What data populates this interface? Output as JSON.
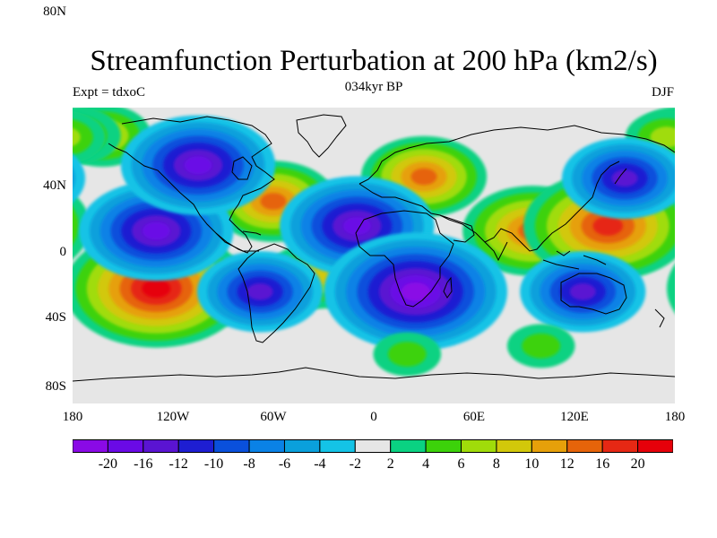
{
  "title": "Streamfunction Perturbation at 200 hPa (km2/s)",
  "left_subtitle": "Expt = tdxoC",
  "center_subtitle": "034kyr BP",
  "right_subtitle": "DJF",
  "lat_labels": [
    "80N",
    "40N",
    "0",
    "40S",
    "80S"
  ],
  "lon_labels": [
    "180",
    "120W",
    "60W",
    "0",
    "60E",
    "120E",
    "180"
  ],
  "colorbar": {
    "colors": [
      "#8a0ae6",
      "#6a0ae6",
      "#5a14d2",
      "#1e1ed2",
      "#0a50dc",
      "#0a82e6",
      "#0aa0dc",
      "#14c3e6",
      "#e6e6e6",
      "#0ad282",
      "#3cd20a",
      "#a0dc0a",
      "#d2c80a",
      "#e6a00a",
      "#e6640a",
      "#e62814",
      "#e6000a"
    ],
    "labels": [
      "-20",
      "-16",
      "-12",
      "-10",
      "-8",
      "-6",
      "-4",
      "-2",
      "2",
      "4",
      "6",
      "8",
      "10",
      "12",
      "16",
      "20"
    ]
  },
  "chart_data": {
    "type": "heatmap",
    "title": "Streamfunction Perturbation at 200 hPa (km2/s)",
    "subtitle_left": "Expt = tdxoC",
    "subtitle_center": "034kyr BP",
    "subtitle_right": "DJF",
    "x_range": [
      -180,
      180
    ],
    "y_range": [
      -90,
      90
    ],
    "contour_levels": [
      -20,
      -16,
      -12,
      -10,
      -8,
      -6,
      -4,
      -2,
      2,
      4,
      6,
      8,
      10,
      12,
      16,
      20
    ],
    "features": [
      {
        "lon": -130,
        "lat": -20,
        "value": 20
      },
      {
        "lon": 95,
        "lat": 15,
        "value": 14
      },
      {
        "lon": 140,
        "lat": 18,
        "value": 18
      },
      {
        "lon": 30,
        "lat": 48,
        "value": 12
      },
      {
        "lon": -162,
        "lat": 73,
        "value": 8
      },
      {
        "lon": -178,
        "lat": 73,
        "value": 7
      },
      {
        "lon": 175,
        "lat": 72,
        "value": 6
      },
      {
        "lon": -60,
        "lat": 33,
        "value": 12
      },
      {
        "lon": -33,
        "lat": -12,
        "value": 9
      },
      {
        "lon": -130,
        "lat": 15,
        "value": -16
      },
      {
        "lon": -105,
        "lat": 55,
        "value": -16
      },
      {
        "lon": -10,
        "lat": 18,
        "value": -16
      },
      {
        "lon": 25,
        "lat": -22,
        "value": -20
      },
      {
        "lon": -68,
        "lat": -22,
        "value": -12
      },
      {
        "lon": 125,
        "lat": -22,
        "value": -12
      },
      {
        "lon": 150,
        "lat": 47,
        "value": -12
      },
      {
        "lon": 20,
        "lat": -60,
        "value": 4
      },
      {
        "lon": 100,
        "lat": -55,
        "value": 4
      }
    ]
  }
}
